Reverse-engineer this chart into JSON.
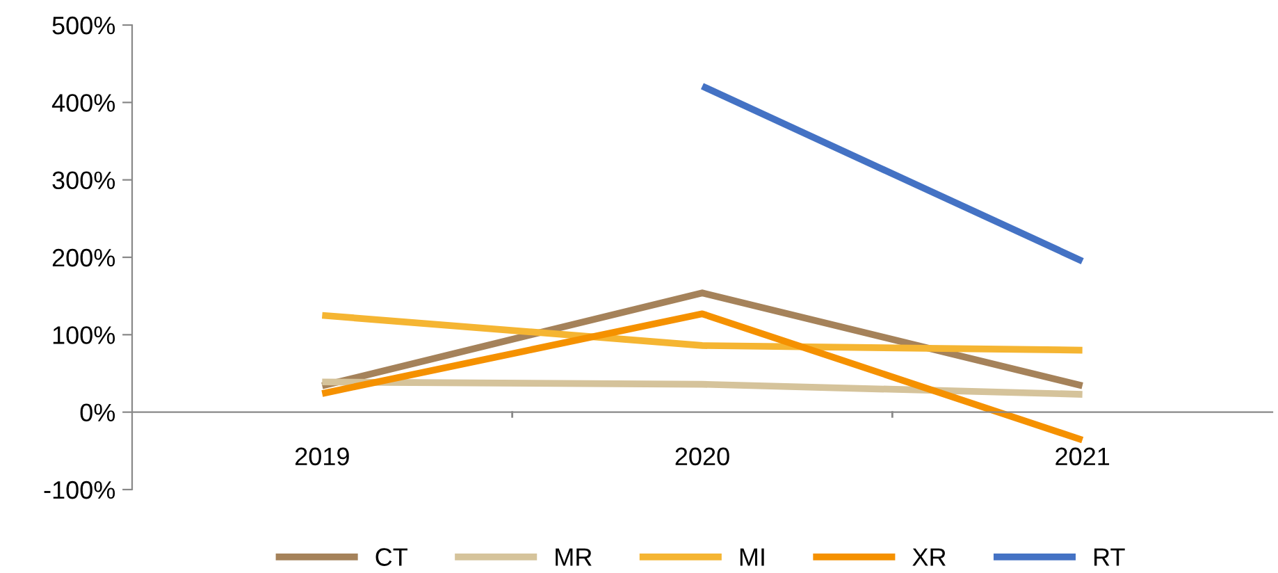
{
  "chart_data": {
    "type": "line",
    "categories": [
      "2019",
      "2020",
      "2021"
    ],
    "series": [
      {
        "name": "CT",
        "color": "#a5825a",
        "values": [
          34,
          154,
          34
        ]
      },
      {
        "name": "MR",
        "color": "#d5c39b",
        "values": [
          39,
          36,
          23
        ]
      },
      {
        "name": "MI",
        "color": "#f5b532",
        "values": [
          125,
          86,
          80
        ]
      },
      {
        "name": "XR",
        "color": "#f59100",
        "values": [
          24,
          127,
          -36
        ]
      },
      {
        "name": "RT",
        "color": "#4472c4",
        "values": [
          null,
          421,
          195
        ]
      }
    ],
    "ylim": [
      -100,
      500
    ],
    "yticks": [
      {
        "value": -100,
        "label": "-100%"
      },
      {
        "value": 0,
        "label": "0%"
      },
      {
        "value": 100,
        "label": "100%"
      },
      {
        "value": 200,
        "label": "200%"
      },
      {
        "value": 300,
        "label": "300%"
      },
      {
        "value": 400,
        "label": "400%"
      },
      {
        "value": 500,
        "label": "500%"
      }
    ],
    "grid": false,
    "legend": "bottom",
    "marker": "none",
    "line_style": "solid"
  }
}
